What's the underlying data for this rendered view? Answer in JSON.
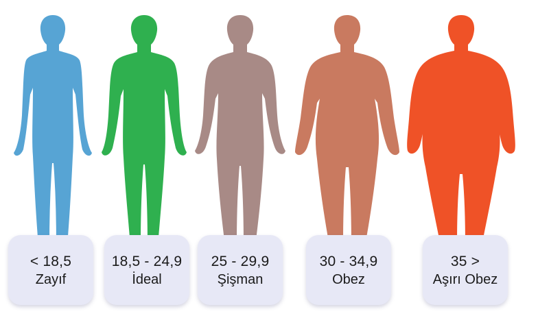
{
  "categories": [
    {
      "range": "< 18,5",
      "label": "Zayıf",
      "color": "#57a4d4"
    },
    {
      "range": "18,5 - 24,9",
      "label": "İdeal",
      "color": "#2fb04f"
    },
    {
      "range": "25 - 29,9",
      "label": "Şişman",
      "color": "#a88a86"
    },
    {
      "range": "30 - 34,9",
      "label": "Obez",
      "color": "#c97a60"
    },
    {
      "range": "35 >",
      "label": "Aşırı Obez",
      "color": "#ef5227"
    }
  ]
}
